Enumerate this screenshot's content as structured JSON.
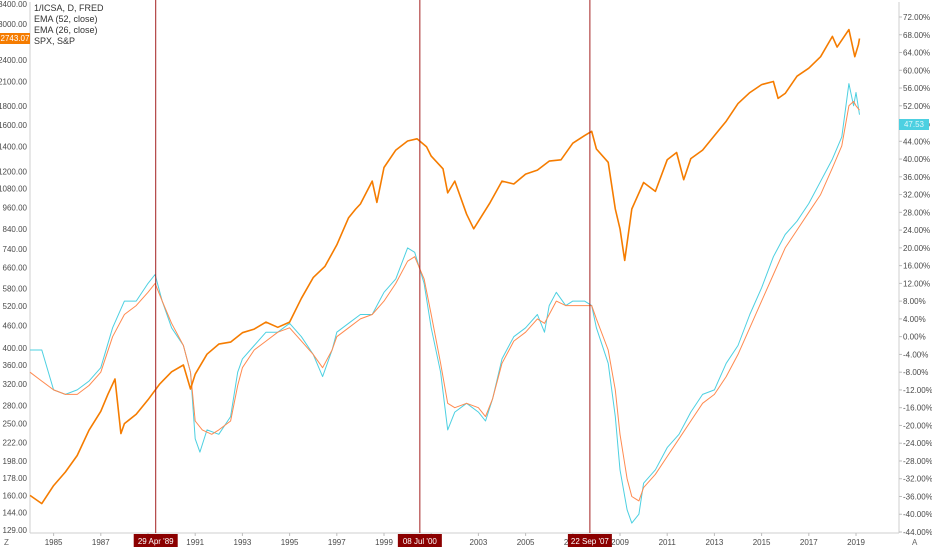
{
  "legend": {
    "line1": "1/ICSA, D, FRED",
    "line2": "EMA (52, close)",
    "line3": "EMA (26, close)",
    "line4": "SPX, S&P"
  },
  "badges": {
    "price": "2743.07",
    "pct": "47.53"
  },
  "corners": {
    "left_label": "Z",
    "right_label": "A"
  },
  "colors": {
    "spx": "#f57c00",
    "ema52": "#4dd0e1",
    "ema26": "#ff8a50",
    "vline": "#a32020",
    "badge_dark": "#8b0000"
  },
  "chart_data": {
    "type": "line",
    "left_axis": {
      "scale": "log",
      "ticks": [
        "3400.00",
        "3000.00",
        "2700.00",
        "2400.00",
        "2100.00",
        "1800.00",
        "1600.00",
        "1400.00",
        "1200.00",
        "1080.00",
        "960.00",
        "840.00",
        "740.00",
        "660.00",
        "580.00",
        "520.00",
        "460.00",
        "400.00",
        "360.00",
        "320.00",
        "280.00",
        "250.00",
        "222.00",
        "198.00",
        "178.00",
        "160.00",
        "144.00",
        "129.00"
      ]
    },
    "right_axis": {
      "ticks": [
        "72.00%",
        "68.00%",
        "64.00%",
        "60.00%",
        "56.00%",
        "52.00%",
        "48.00%",
        "44.00%",
        "40.00%",
        "36.00%",
        "32.00%",
        "28.00%",
        "24.00%",
        "20.00%",
        "16.00%",
        "12.00%",
        "8.00%",
        "4.00%",
        "0.00%",
        "-4.00%",
        "-8.00%",
        "-12.00%",
        "-16.00%",
        "-20.00%",
        "-24.00%",
        "-28.00%",
        "-32.00%",
        "-36.00%",
        "-40.00%",
        "-44.00%"
      ]
    },
    "x_axis": {
      "ticks": [
        "1985",
        "1987",
        "1989",
        "1991",
        "1993",
        "1995",
        "1997",
        "1999",
        "2001",
        "2003",
        "2005",
        "2007",
        "2009",
        "2011",
        "2013",
        "2015",
        "2017",
        "2019"
      ]
    },
    "markers": [
      {
        "date": "1989-04-29",
        "label": "29 Apr '89"
      },
      {
        "date": "2000-07-08",
        "label": "08 Jul '00"
      },
      {
        "date": "2007-09-22",
        "label": "22 Sep '07"
      }
    ],
    "series": [
      {
        "name": "SPX, S&P",
        "axis": "left",
        "color": "#f57c00",
        "points": [
          [
            1984.0,
            160
          ],
          [
            1984.5,
            152
          ],
          [
            1985.0,
            170
          ],
          [
            1985.5,
            185
          ],
          [
            1986.0,
            205
          ],
          [
            1986.5,
            240
          ],
          [
            1987.0,
            270
          ],
          [
            1987.3,
            300
          ],
          [
            1987.6,
            330
          ],
          [
            1987.85,
            235
          ],
          [
            1988.0,
            250
          ],
          [
            1988.5,
            265
          ],
          [
            1989.0,
            290
          ],
          [
            1989.5,
            320
          ],
          [
            1990.0,
            345
          ],
          [
            1990.5,
            360
          ],
          [
            1990.8,
            310
          ],
          [
            1991.0,
            340
          ],
          [
            1991.5,
            385
          ],
          [
            1992.0,
            410
          ],
          [
            1992.5,
            415
          ],
          [
            1993.0,
            440
          ],
          [
            1993.5,
            450
          ],
          [
            1994.0,
            470
          ],
          [
            1994.5,
            455
          ],
          [
            1995.0,
            470
          ],
          [
            1995.5,
            545
          ],
          [
            1996.0,
            620
          ],
          [
            1996.5,
            665
          ],
          [
            1997.0,
            760
          ],
          [
            1997.5,
            900
          ],
          [
            1997.8,
            950
          ],
          [
            1998.0,
            980
          ],
          [
            1998.5,
            1130
          ],
          [
            1998.7,
            990
          ],
          [
            1999.0,
            1230
          ],
          [
            1999.5,
            1370
          ],
          [
            2000.0,
            1450
          ],
          [
            2000.4,
            1470
          ],
          [
            2000.8,
            1400
          ],
          [
            2001.0,
            1320
          ],
          [
            2001.5,
            1220
          ],
          [
            2001.7,
            1050
          ],
          [
            2002.0,
            1130
          ],
          [
            2002.5,
            920
          ],
          [
            2002.8,
            840
          ],
          [
            2003.0,
            880
          ],
          [
            2003.5,
            990
          ],
          [
            2004.0,
            1130
          ],
          [
            2004.5,
            1110
          ],
          [
            2005.0,
            1180
          ],
          [
            2005.5,
            1210
          ],
          [
            2006.0,
            1280
          ],
          [
            2006.5,
            1290
          ],
          [
            2007.0,
            1430
          ],
          [
            2007.5,
            1500
          ],
          [
            2007.8,
            1540
          ],
          [
            2008.0,
            1380
          ],
          [
            2008.5,
            1270
          ],
          [
            2008.8,
            950
          ],
          [
            2009.0,
            840
          ],
          [
            2009.2,
            690
          ],
          [
            2009.5,
            950
          ],
          [
            2010.0,
            1120
          ],
          [
            2010.5,
            1060
          ],
          [
            2011.0,
            1290
          ],
          [
            2011.4,
            1350
          ],
          [
            2011.7,
            1140
          ],
          [
            2012.0,
            1300
          ],
          [
            2012.5,
            1370
          ],
          [
            2013.0,
            1500
          ],
          [
            2013.5,
            1640
          ],
          [
            2014.0,
            1830
          ],
          [
            2014.5,
            1960
          ],
          [
            2015.0,
            2060
          ],
          [
            2015.5,
            2100
          ],
          [
            2015.7,
            1890
          ],
          [
            2016.0,
            1950
          ],
          [
            2016.5,
            2170
          ],
          [
            2017.0,
            2280
          ],
          [
            2017.5,
            2450
          ],
          [
            2018.0,
            2780
          ],
          [
            2018.2,
            2600
          ],
          [
            2018.7,
            2900
          ],
          [
            2018.95,
            2450
          ],
          [
            2019.1,
            2640
          ],
          [
            2019.15,
            2743
          ]
        ]
      },
      {
        "name": "EMA (52, close)",
        "axis": "right",
        "color": "#4dd0e1",
        "points": [
          [
            1984.0,
            -3
          ],
          [
            1984.5,
            -3
          ],
          [
            1985.0,
            -12
          ],
          [
            1985.5,
            -13
          ],
          [
            1986.0,
            -12
          ],
          [
            1986.5,
            -10
          ],
          [
            1987.0,
            -7
          ],
          [
            1987.5,
            2
          ],
          [
            1988.0,
            8
          ],
          [
            1988.5,
            8
          ],
          [
            1989.0,
            12
          ],
          [
            1989.3,
            14
          ],
          [
            1989.6,
            8
          ],
          [
            1990.0,
            2
          ],
          [
            1990.5,
            -2
          ],
          [
            1990.8,
            -8
          ],
          [
            1991.0,
            -23
          ],
          [
            1991.2,
            -26
          ],
          [
            1991.5,
            -21
          ],
          [
            1992.0,
            -22
          ],
          [
            1992.5,
            -18
          ],
          [
            1992.8,
            -8
          ],
          [
            1993.0,
            -5
          ],
          [
            1993.5,
            -2
          ],
          [
            1994.0,
            1
          ],
          [
            1994.5,
            1
          ],
          [
            1995.0,
            3
          ],
          [
            1995.5,
            0
          ],
          [
            1996.0,
            -4
          ],
          [
            1996.4,
            -9
          ],
          [
            1996.8,
            -3
          ],
          [
            1997.0,
            1
          ],
          [
            1997.5,
            3
          ],
          [
            1998.0,
            5
          ],
          [
            1998.5,
            5
          ],
          [
            1999.0,
            10
          ],
          [
            1999.5,
            13
          ],
          [
            2000.0,
            20
          ],
          [
            2000.3,
            19
          ],
          [
            2000.7,
            12
          ],
          [
            2001.0,
            2
          ],
          [
            2001.4,
            -8
          ],
          [
            2001.7,
            -21
          ],
          [
            2002.0,
            -17
          ],
          [
            2002.5,
            -15
          ],
          [
            2003.0,
            -17
          ],
          [
            2003.3,
            -19
          ],
          [
            2003.6,
            -14
          ],
          [
            2004.0,
            -5
          ],
          [
            2004.5,
            0
          ],
          [
            2005.0,
            2
          ],
          [
            2005.5,
            5
          ],
          [
            2005.8,
            1
          ],
          [
            2006.0,
            7
          ],
          [
            2006.3,
            10
          ],
          [
            2006.7,
            7
          ],
          [
            2007.0,
            8
          ],
          [
            2007.5,
            8
          ],
          [
            2007.8,
            7
          ],
          [
            2008.0,
            2
          ],
          [
            2008.5,
            -6
          ],
          [
            2008.8,
            -18
          ],
          [
            2009.0,
            -30
          ],
          [
            2009.3,
            -39
          ],
          [
            2009.5,
            -42
          ],
          [
            2009.8,
            -40
          ],
          [
            2010.0,
            -33
          ],
          [
            2010.5,
            -30
          ],
          [
            2011.0,
            -25
          ],
          [
            2011.5,
            -22
          ],
          [
            2012.0,
            -17
          ],
          [
            2012.5,
            -13
          ],
          [
            2013.0,
            -12
          ],
          [
            2013.5,
            -6
          ],
          [
            2014.0,
            -2
          ],
          [
            2014.5,
            5
          ],
          [
            2015.0,
            11
          ],
          [
            2015.5,
            18
          ],
          [
            2016.0,
            23
          ],
          [
            2016.5,
            26
          ],
          [
            2017.0,
            30
          ],
          [
            2017.5,
            35
          ],
          [
            2018.0,
            40
          ],
          [
            2018.4,
            45
          ],
          [
            2018.7,
            57
          ],
          [
            2018.9,
            52
          ],
          [
            2019.0,
            55
          ],
          [
            2019.15,
            50
          ]
        ]
      },
      {
        "name": "EMA (26, close)",
        "axis": "right",
        "color": "#ff8a50",
        "points": [
          [
            1984.0,
            -8
          ],
          [
            1984.5,
            -10
          ],
          [
            1985.0,
            -12
          ],
          [
            1985.5,
            -13
          ],
          [
            1986.0,
            -13
          ],
          [
            1986.5,
            -11
          ],
          [
            1987.0,
            -8
          ],
          [
            1987.5,
            0
          ],
          [
            1988.0,
            5
          ],
          [
            1988.5,
            7
          ],
          [
            1989.0,
            10
          ],
          [
            1989.3,
            12
          ],
          [
            1989.6,
            8
          ],
          [
            1990.0,
            3
          ],
          [
            1990.5,
            -2
          ],
          [
            1990.8,
            -8
          ],
          [
            1991.0,
            -19
          ],
          [
            1991.3,
            -21
          ],
          [
            1991.7,
            -22
          ],
          [
            1992.0,
            -21
          ],
          [
            1992.5,
            -19
          ],
          [
            1992.8,
            -11
          ],
          [
            1993.0,
            -7
          ],
          [
            1993.5,
            -3
          ],
          [
            1994.0,
            -1
          ],
          [
            1994.5,
            1
          ],
          [
            1995.0,
            2
          ],
          [
            1995.5,
            -1
          ],
          [
            1996.0,
            -4
          ],
          [
            1996.4,
            -7
          ],
          [
            1996.8,
            -3
          ],
          [
            1997.0,
            0
          ],
          [
            1997.5,
            2
          ],
          [
            1998.0,
            4
          ],
          [
            1998.5,
            5
          ],
          [
            1999.0,
            8
          ],
          [
            1999.5,
            12
          ],
          [
            2000.0,
            17
          ],
          [
            2000.3,
            18
          ],
          [
            2000.7,
            13
          ],
          [
            2001.0,
            5
          ],
          [
            2001.4,
            -6
          ],
          [
            2001.7,
            -15
          ],
          [
            2002.0,
            -16
          ],
          [
            2002.5,
            -15
          ],
          [
            2003.0,
            -16
          ],
          [
            2003.3,
            -18
          ],
          [
            2003.6,
            -14
          ],
          [
            2004.0,
            -6
          ],
          [
            2004.5,
            -1
          ],
          [
            2005.0,
            1
          ],
          [
            2005.5,
            4
          ],
          [
            2005.8,
            3
          ],
          [
            2006.0,
            5
          ],
          [
            2006.3,
            8
          ],
          [
            2006.7,
            7
          ],
          [
            2007.0,
            7
          ],
          [
            2007.5,
            7
          ],
          [
            2007.8,
            7
          ],
          [
            2008.0,
            4
          ],
          [
            2008.5,
            -3
          ],
          [
            2008.8,
            -12
          ],
          [
            2009.0,
            -22
          ],
          [
            2009.3,
            -32
          ],
          [
            2009.5,
            -36
          ],
          [
            2009.8,
            -37
          ],
          [
            2010.0,
            -34
          ],
          [
            2010.5,
            -31
          ],
          [
            2011.0,
            -27
          ],
          [
            2011.5,
            -23
          ],
          [
            2012.0,
            -19
          ],
          [
            2012.5,
            -15
          ],
          [
            2013.0,
            -13
          ],
          [
            2013.5,
            -9
          ],
          [
            2014.0,
            -4
          ],
          [
            2014.5,
            2
          ],
          [
            2015.0,
            8
          ],
          [
            2015.5,
            14
          ],
          [
            2016.0,
            20
          ],
          [
            2016.5,
            24
          ],
          [
            2017.0,
            28
          ],
          [
            2017.5,
            32
          ],
          [
            2018.0,
            38
          ],
          [
            2018.4,
            43
          ],
          [
            2018.7,
            52
          ],
          [
            2018.9,
            53
          ],
          [
            2019.0,
            52
          ],
          [
            2019.15,
            51
          ]
        ]
      }
    ]
  }
}
